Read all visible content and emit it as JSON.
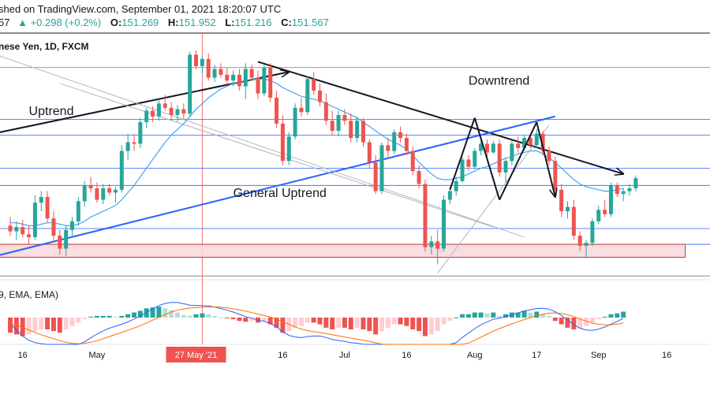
{
  "header": {
    "published_text": "shed on TradingView.com, September 01, 2021 18:20:07 UTC",
    "last_partial": "57",
    "change": "▲ +0.298 (+0.2%)",
    "open_label": "O:",
    "open_value": "151.269",
    "high_label": "H:",
    "high_value": "151.952",
    "low_label": "L:",
    "low_value": "151.216",
    "close_label": "C:",
    "close_value": "151.567"
  },
  "chart_data": {
    "type": "candlestick",
    "title": "nese Yen, 1D, FXCM",
    "ylim": [
      143.0,
      160.0
    ],
    "x_ticks": [
      {
        "label": "16",
        "index": 2
      },
      {
        "label": "May",
        "index": 14
      },
      {
        "label": "27 May '21",
        "index": 30
      },
      {
        "label": "16",
        "index": 44
      },
      {
        "label": "Jul",
        "index": 54
      },
      {
        "label": "16",
        "index": 64
      },
      {
        "label": "Aug",
        "index": 75
      },
      {
        "label": "17",
        "index": 85
      },
      {
        "label": "Sep",
        "index": 95
      },
      {
        "label": "16",
        "index": 106
      }
    ],
    "highlight_date_index": 31,
    "candles": [
      {
        "o": 146.6,
        "h": 147.2,
        "l": 145.9,
        "c": 146.2
      },
      {
        "o": 146.2,
        "h": 146.9,
        "l": 145.6,
        "c": 146.5
      },
      {
        "o": 146.5,
        "h": 147.0,
        "l": 145.8,
        "c": 146.0
      },
      {
        "o": 146.0,
        "h": 146.6,
        "l": 145.3,
        "c": 145.8
      },
      {
        "o": 145.8,
        "h": 148.7,
        "l": 145.6,
        "c": 148.2
      },
      {
        "o": 148.2,
        "h": 149.0,
        "l": 147.6,
        "c": 148.6
      },
      {
        "o": 148.6,
        "h": 149.0,
        "l": 146.8,
        "c": 147.1
      },
      {
        "o": 147.1,
        "h": 147.6,
        "l": 145.5,
        "c": 145.9
      },
      {
        "o": 145.9,
        "h": 146.3,
        "l": 144.6,
        "c": 145.0
      },
      {
        "o": 145.0,
        "h": 146.6,
        "l": 144.5,
        "c": 146.3
      },
      {
        "o": 146.3,
        "h": 147.2,
        "l": 145.9,
        "c": 146.9
      },
      {
        "o": 146.9,
        "h": 148.6,
        "l": 146.6,
        "c": 148.3
      },
      {
        "o": 148.3,
        "h": 149.7,
        "l": 147.9,
        "c": 149.4
      },
      {
        "o": 149.4,
        "h": 150.0,
        "l": 148.9,
        "c": 149.2
      },
      {
        "o": 149.2,
        "h": 149.6,
        "l": 148.2,
        "c": 148.4
      },
      {
        "o": 148.4,
        "h": 149.5,
        "l": 148.1,
        "c": 149.2
      },
      {
        "o": 149.2,
        "h": 149.5,
        "l": 148.7,
        "c": 148.9
      },
      {
        "o": 148.9,
        "h": 149.3,
        "l": 148.2,
        "c": 149.1
      },
      {
        "o": 149.1,
        "h": 152.2,
        "l": 148.9,
        "c": 151.8
      },
      {
        "o": 151.8,
        "h": 153.0,
        "l": 151.2,
        "c": 152.4
      },
      {
        "o": 152.4,
        "h": 153.0,
        "l": 151.8,
        "c": 152.3
      },
      {
        "o": 152.3,
        "h": 154.1,
        "l": 152.0,
        "c": 153.8
      },
      {
        "o": 153.8,
        "h": 154.8,
        "l": 153.4,
        "c": 154.6
      },
      {
        "o": 154.6,
        "h": 154.9,
        "l": 153.8,
        "c": 154.2
      },
      {
        "o": 154.2,
        "h": 155.4,
        "l": 153.9,
        "c": 155.1
      },
      {
        "o": 155.1,
        "h": 155.7,
        "l": 154.6,
        "c": 154.8
      },
      {
        "o": 154.8,
        "h": 155.2,
        "l": 153.9,
        "c": 154.3
      },
      {
        "o": 154.3,
        "h": 155.0,
        "l": 153.8,
        "c": 154.7
      },
      {
        "o": 154.7,
        "h": 155.1,
        "l": 154.0,
        "c": 154.4
      },
      {
        "o": 154.4,
        "h": 158.7,
        "l": 154.2,
        "c": 158.5
      },
      {
        "o": 158.5,
        "h": 158.8,
        "l": 157.5,
        "c": 157.7
      },
      {
        "o": 157.7,
        "h": 158.4,
        "l": 157.2,
        "c": 158.2
      },
      {
        "o": 158.2,
        "h": 158.6,
        "l": 156.7,
        "c": 156.9
      },
      {
        "o": 156.9,
        "h": 157.8,
        "l": 156.6,
        "c": 157.5
      },
      {
        "o": 157.5,
        "h": 157.9,
        "l": 156.9,
        "c": 157.1
      },
      {
        "o": 157.1,
        "h": 157.6,
        "l": 156.4,
        "c": 156.7
      },
      {
        "o": 156.7,
        "h": 157.4,
        "l": 156.3,
        "c": 157.1
      },
      {
        "o": 157.1,
        "h": 157.5,
        "l": 156.0,
        "c": 156.3
      },
      {
        "o": 156.3,
        "h": 157.9,
        "l": 155.4,
        "c": 157.5
      },
      {
        "o": 157.5,
        "h": 157.8,
        "l": 156.7,
        "c": 156.9
      },
      {
        "o": 156.9,
        "h": 157.4,
        "l": 155.4,
        "c": 155.8
      },
      {
        "o": 155.8,
        "h": 157.8,
        "l": 155.6,
        "c": 157.6
      },
      {
        "o": 157.6,
        "h": 157.9,
        "l": 155.2,
        "c": 155.5
      },
      {
        "o": 155.5,
        "h": 156.0,
        "l": 153.4,
        "c": 153.7
      },
      {
        "o": 153.7,
        "h": 154.3,
        "l": 150.8,
        "c": 151.1
      },
      {
        "o": 151.1,
        "h": 153.1,
        "l": 150.8,
        "c": 152.8
      },
      {
        "o": 152.8,
        "h": 155.1,
        "l": 152.6,
        "c": 154.8
      },
      {
        "o": 154.8,
        "h": 155.5,
        "l": 154.2,
        "c": 154.5
      },
      {
        "o": 154.5,
        "h": 157.0,
        "l": 154.3,
        "c": 156.8
      },
      {
        "o": 156.8,
        "h": 157.3,
        "l": 155.7,
        "c": 156.0
      },
      {
        "o": 156.0,
        "h": 156.5,
        "l": 154.9,
        "c": 155.2
      },
      {
        "o": 155.2,
        "h": 155.8,
        "l": 153.6,
        "c": 153.9
      },
      {
        "o": 153.9,
        "h": 154.6,
        "l": 152.9,
        "c": 153.2
      },
      {
        "o": 153.2,
        "h": 154.6,
        "l": 152.8,
        "c": 154.3
      },
      {
        "o": 154.3,
        "h": 154.7,
        "l": 153.6,
        "c": 153.9
      },
      {
        "o": 153.9,
        "h": 154.4,
        "l": 152.4,
        "c": 152.7
      },
      {
        "o": 152.7,
        "h": 154.2,
        "l": 152.4,
        "c": 153.9
      },
      {
        "o": 153.9,
        "h": 154.1,
        "l": 152.1,
        "c": 152.4
      },
      {
        "o": 152.4,
        "h": 152.6,
        "l": 150.6,
        "c": 151.0
      },
      {
        "o": 151.0,
        "h": 151.5,
        "l": 148.8,
        "c": 149.0
      },
      {
        "o": 149.0,
        "h": 152.4,
        "l": 148.8,
        "c": 152.2
      },
      {
        "o": 152.2,
        "h": 152.7,
        "l": 151.4,
        "c": 151.8
      },
      {
        "o": 151.8,
        "h": 153.3,
        "l": 151.6,
        "c": 153.1
      },
      {
        "o": 153.1,
        "h": 153.5,
        "l": 152.4,
        "c": 152.7
      },
      {
        "o": 152.7,
        "h": 153.0,
        "l": 151.5,
        "c": 151.8
      },
      {
        "o": 151.8,
        "h": 152.1,
        "l": 150.1,
        "c": 150.4
      },
      {
        "o": 150.4,
        "h": 150.8,
        "l": 149.2,
        "c": 149.5
      },
      {
        "o": 149.5,
        "h": 149.8,
        "l": 144.8,
        "c": 145.1
      },
      {
        "o": 145.1,
        "h": 145.9,
        "l": 144.6,
        "c": 145.5
      },
      {
        "o": 145.5,
        "h": 146.3,
        "l": 143.9,
        "c": 145.0
      },
      {
        "o": 145.0,
        "h": 148.7,
        "l": 144.8,
        "c": 148.4
      },
      {
        "o": 148.4,
        "h": 149.3,
        "l": 148.1,
        "c": 149.0
      },
      {
        "o": 149.0,
        "h": 150.0,
        "l": 148.7,
        "c": 149.7
      },
      {
        "o": 149.7,
        "h": 151.4,
        "l": 149.6,
        "c": 151.2
      },
      {
        "o": 151.2,
        "h": 151.5,
        "l": 150.4,
        "c": 150.7
      },
      {
        "o": 150.7,
        "h": 152.0,
        "l": 150.5,
        "c": 151.8
      },
      {
        "o": 151.8,
        "h": 152.6,
        "l": 151.5,
        "c": 152.3
      },
      {
        "o": 152.3,
        "h": 152.6,
        "l": 151.3,
        "c": 151.7
      },
      {
        "o": 151.7,
        "h": 152.5,
        "l": 151.6,
        "c": 152.3
      },
      {
        "o": 152.3,
        "h": 152.6,
        "l": 150.0,
        "c": 150.3
      },
      {
        "o": 150.3,
        "h": 151.3,
        "l": 149.6,
        "c": 151.1
      },
      {
        "o": 151.1,
        "h": 152.5,
        "l": 150.8,
        "c": 152.3
      },
      {
        "o": 152.3,
        "h": 152.8,
        "l": 151.7,
        "c": 152.0
      },
      {
        "o": 152.0,
        "h": 152.9,
        "l": 151.8,
        "c": 152.7
      },
      {
        "o": 152.7,
        "h": 153.0,
        "l": 152.0,
        "c": 152.2
      },
      {
        "o": 152.2,
        "h": 153.3,
        "l": 152.0,
        "c": 153.0
      },
      {
        "o": 153.0,
        "h": 153.2,
        "l": 151.5,
        "c": 151.8
      },
      {
        "o": 151.8,
        "h": 152.1,
        "l": 150.8,
        "c": 151.1
      },
      {
        "o": 151.1,
        "h": 151.4,
        "l": 148.8,
        "c": 149.1
      },
      {
        "o": 149.1,
        "h": 149.5,
        "l": 147.2,
        "c": 147.6
      },
      {
        "o": 147.6,
        "h": 148.3,
        "l": 147.1,
        "c": 147.9
      },
      {
        "o": 147.9,
        "h": 148.4,
        "l": 145.6,
        "c": 145.9
      },
      {
        "o": 145.9,
        "h": 146.2,
        "l": 144.8,
        "c": 145.2
      },
      {
        "o": 145.2,
        "h": 145.6,
        "l": 144.4,
        "c": 145.4
      },
      {
        "o": 145.4,
        "h": 147.1,
        "l": 145.2,
        "c": 146.9
      },
      {
        "o": 146.9,
        "h": 148.0,
        "l": 146.7,
        "c": 147.7
      },
      {
        "o": 147.7,
        "h": 148.4,
        "l": 147.2,
        "c": 147.4
      },
      {
        "o": 147.4,
        "h": 149.6,
        "l": 147.2,
        "c": 149.4
      },
      {
        "o": 149.4,
        "h": 149.6,
        "l": 148.6,
        "c": 148.8
      },
      {
        "o": 148.8,
        "h": 149.2,
        "l": 148.3,
        "c": 149.0
      },
      {
        "o": 149.0,
        "h": 149.5,
        "l": 148.7,
        "c": 149.2
      },
      {
        "o": 149.2,
        "h": 150.1,
        "l": 149.0,
        "c": 149.9
      }
    ],
    "ma": [
      146.8,
      146.8,
      146.7,
      146.6,
      146.6,
      146.7,
      146.8,
      146.8,
      146.7,
      146.6,
      146.6,
      146.7,
      146.9,
      147.2,
      147.4,
      147.6,
      147.8,
      148.0,
      148.4,
      148.9,
      149.4,
      150.0,
      150.6,
      151.2,
      151.8,
      152.4,
      152.9,
      153.3,
      153.7,
      154.2,
      154.7,
      155.1,
      155.5,
      155.8,
      156.1,
      156.3,
      156.5,
      156.6,
      156.7,
      156.8,
      156.8,
      156.8,
      156.7,
      156.5,
      156.2,
      156.0,
      155.8,
      155.6,
      155.5,
      155.4,
      155.3,
      155.1,
      154.9,
      154.7,
      154.5,
      154.3,
      154.1,
      153.8,
      153.5,
      153.2,
      152.9,
      152.6,
      152.4,
      152.2,
      151.9,
      151.5,
      151.0,
      150.6,
      150.2,
      149.9,
      149.8,
      149.8,
      149.9,
      150.0,
      150.2,
      150.4,
      150.6,
      150.7,
      150.9,
      151.1,
      151.3,
      151.4,
      151.6,
      151.7,
      151.8,
      151.8,
      151.6,
      151.3,
      151.0,
      150.6,
      150.2,
      149.8,
      149.5,
      149.3,
      149.2,
      149.1,
      149.0,
      149.0,
      149.1,
      149.2
    ],
    "horizontal_levels": [
      {
        "value": 157.6,
        "color": "#787b86"
      },
      {
        "value": 154.0,
        "color": "#2962ff"
      },
      {
        "value": 152.9,
        "color": "#2962ff"
      },
      {
        "value": 150.6,
        "color": "#2962ff"
      },
      {
        "value": 149.4,
        "color": "#2962ff"
      },
      {
        "value": 146.4,
        "color": "#2962ff"
      },
      {
        "value": 145.3,
        "color": "#2962ff"
      },
      {
        "value": 143.1,
        "color": "#787b86"
      }
    ],
    "support_zone": {
      "from": 144.4,
      "to": 145.3,
      "fill": "#f8d7da",
      "stroke": "#c0392b",
      "x_start": -10,
      "x_end": 109
    },
    "trendlines": [
      {
        "from": [
          -5,
          152.8
        ],
        "to": [
          45,
          157.3
        ],
        "color": "#131722",
        "arrow": true
      },
      {
        "from": [
          40,
          158.0
        ],
        "to": [
          99,
          150.2
        ],
        "color": "#131722",
        "arrow": true
      },
      {
        "from": [
          -5,
          144.2
        ],
        "to": [
          88,
          154.2
        ],
        "color": "#2962ff",
        "arrow": false
      },
      {
        "from": [
          8,
          156.5
        ],
        "to": [
          78,
          146.5
        ],
        "color": "#b2b5be",
        "arrow": false
      },
      {
        "from": [
          -5,
          158.9
        ],
        "to": [
          83,
          145.8
        ],
        "color": "#b2b5be",
        "arrow": false
      },
      {
        "from": [
          69,
          143.3
        ],
        "to": [
          87,
          153.6
        ],
        "color": "#b2b5be",
        "arrow": false
      }
    ],
    "pattern_lines": [
      {
        "from": [
          71,
          149.1
        ],
        "to": [
          75,
          154.1
        ],
        "color": "#131722",
        "arrow": false
      },
      {
        "from": [
          75,
          154.1
        ],
        "to": [
          79,
          148.4
        ],
        "color": "#131722",
        "arrow": false
      },
      {
        "from": [
          79,
          148.4
        ],
        "to": [
          85,
          153.8
        ],
        "color": "#131722",
        "arrow": false
      },
      {
        "from": [
          85,
          153.8
        ],
        "to": [
          88,
          148.6
        ],
        "color": "#131722",
        "arrow": true
      }
    ],
    "annotations": [
      {
        "text": "Downtrend",
        "x": 74,
        "y": 156.4
      },
      {
        "text": "Uptrend",
        "x": 3,
        "y": 154.3
      },
      {
        "text": "General Uptrend",
        "x": 36,
        "y": 148.6
      }
    ],
    "indicator": {
      "title": "9, EMA, EMA)",
      "ylim": [
        -1.4,
        1.4
      ],
      "histogram": [
        -0.9,
        -1.0,
        -1.1,
        -1.0,
        -0.8,
        -0.7,
        -0.7,
        -0.8,
        -0.9,
        -0.7,
        -0.5,
        -0.3,
        -0.1,
        0.05,
        0.1,
        0.1,
        0.1,
        0.05,
        0.1,
        0.2,
        0.3,
        0.4,
        0.55,
        0.6,
        0.65,
        0.55,
        0.45,
        0.3,
        0.15,
        0.1,
        0.2,
        0.25,
        0.2,
        0.1,
        0.0,
        -0.05,
        -0.1,
        -0.2,
        -0.25,
        -0.2,
        -0.3,
        -0.2,
        -0.4,
        -0.6,
        -0.9,
        -0.8,
        -0.6,
        -0.5,
        -0.3,
        -0.3,
        -0.4,
        -0.6,
        -0.7,
        -0.6,
        -0.6,
        -0.7,
        -0.6,
        -0.7,
        -0.8,
        -1.0,
        -0.8,
        -0.6,
        -0.4,
        -0.4,
        -0.5,
        -0.7,
        -0.8,
        -1.1,
        -1.0,
        -0.8,
        -0.4,
        -0.2,
        0.0,
        0.2,
        0.2,
        0.3,
        0.3,
        0.25,
        0.3,
        0.1,
        0.2,
        0.3,
        0.3,
        0.4,
        0.3,
        0.35,
        0.2,
        0.1,
        -0.2,
        -0.4,
        -0.6,
        -0.7,
        -0.65,
        -0.5,
        -0.3,
        -0.1,
        0.05,
        0.2,
        0.25,
        0.35
      ],
      "macd_line_color": "#2962ff",
      "signal_line_color": "#ff6d00"
    },
    "colors": {
      "up": "#26a69a",
      "down": "#ef5350",
      "ma": "#42a5f5",
      "hist_up": "#26a69a",
      "hist_up_light": "#b2dfdb",
      "hist_down": "#ef5350",
      "hist_down_light": "#ffcdd2",
      "highlight": "#ef5350"
    }
  }
}
